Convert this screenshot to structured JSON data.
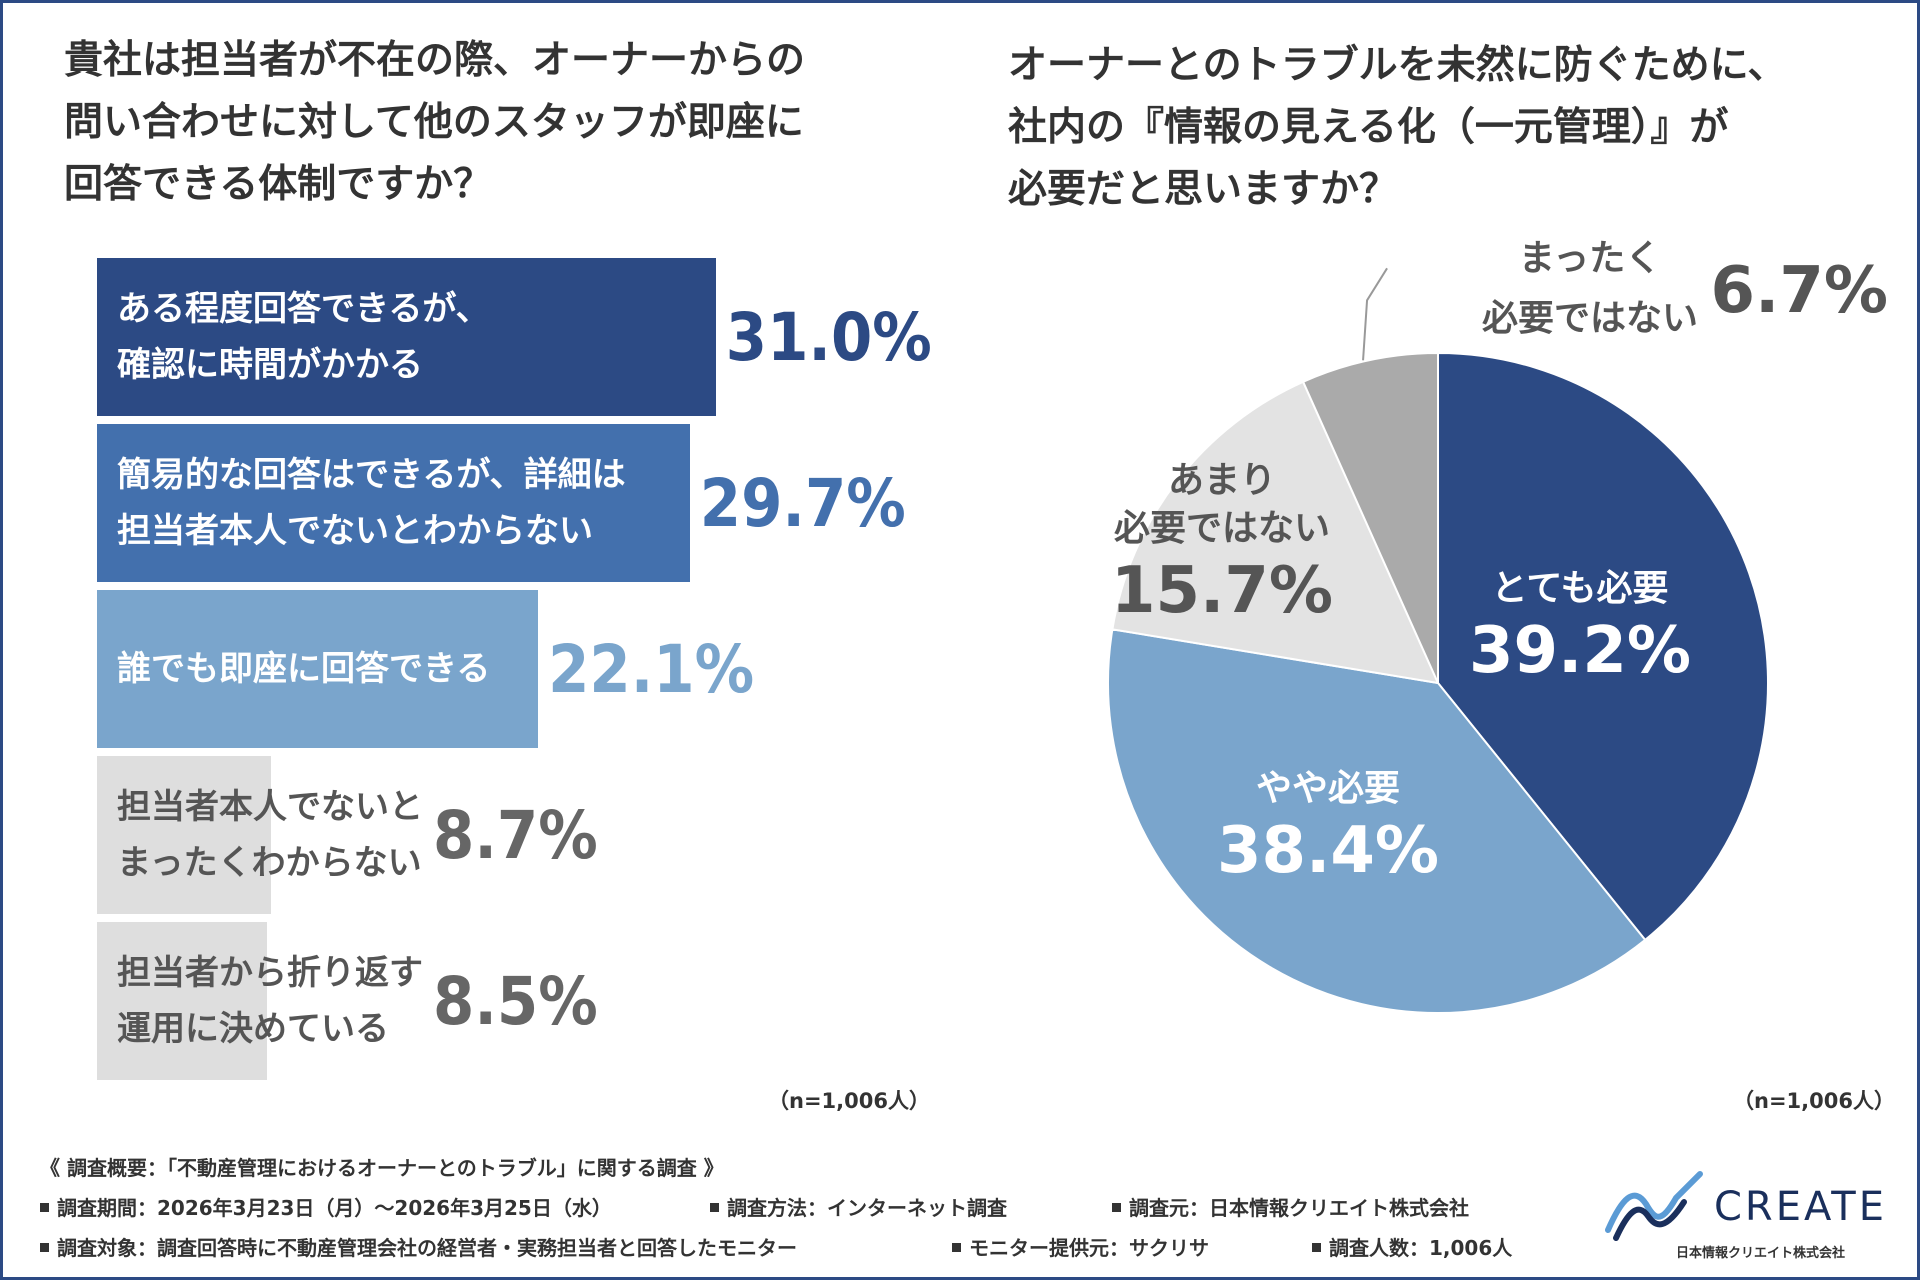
{
  "left_question": {
    "lines": [
      "貴社は担当者が不在の際、オーナーからの",
      "問い合わせに対して他のスタッフが即座に",
      "回答できる体制ですか？"
    ]
  },
  "right_question": {
    "lines": [
      "オーナーとのトラブルを未然に防ぐために、",
      "社内の『情報の見える化（一元管理）』が",
      "必要だと思いますか？"
    ]
  },
  "chart_data": [
    {
      "type": "bar",
      "orientation": "horizontal",
      "categories": [
        "ある程度回答できるが、確認に時間がかかる",
        "簡易的な回答はできるが、詳細は担当者本人でないとわからない",
        "誰でも即座に回答できる",
        "担当者本人でないとまったくわからない",
        "担当者から折り返す運用に決めている"
      ],
      "label_lines": [
        [
          "ある程度回答できるが、",
          "確認に時間がかかる"
        ],
        [
          "簡易的な回答はできるが、詳細は",
          "担当者本人でないとわからない"
        ],
        [
          "誰でも即座に回答できる"
        ],
        [
          "担当者本人でないと",
          "まったくわからない"
        ],
        [
          "担当者から折り返す",
          "運用に決めている"
        ]
      ],
      "values": [
        31.0,
        29.7,
        22.1,
        8.7,
        8.5
      ],
      "value_labels": [
        "31.0%",
        "29.7%",
        "22.1%",
        "8.7%",
        "8.5%"
      ],
      "colors": [
        "#2c4a84",
        "#4370ad",
        "#7aa5cc",
        "#dedede",
        "#dedede"
      ],
      "label_colors": [
        "#ffffff",
        "#ffffff",
        "#ffffff",
        "#555555",
        "#555555"
      ],
      "value_colors": [
        "#2c4a84",
        "#4370ad",
        "#7aa5cc",
        "#666666",
        "#666666"
      ],
      "n_note": "（n=1,006人）"
    },
    {
      "type": "pie",
      "slices": [
        {
          "lines": [
            "とても必要"
          ],
          "value": 39.2,
          "value_label": "39.2%",
          "color": "#2c4a84",
          "text_color": "#ffffff"
        },
        {
          "lines": [
            "やや必要"
          ],
          "value": 38.4,
          "value_label": "38.4%",
          "color": "#7aa5cc",
          "text_color": "#ffffff"
        },
        {
          "lines": [
            "あまり",
            "必要ではない"
          ],
          "value": 15.7,
          "value_label": "15.7%",
          "color": "#e3e3e3",
          "text_color": "#555555"
        },
        {
          "lines": [
            "まったく",
            "必要ではない"
          ],
          "value": 6.7,
          "value_label": "6.7%",
          "color": "#aaaaaa",
          "text_color": "#555555"
        }
      ],
      "n_note": "（n=1,006人）"
    }
  ],
  "footer": {
    "overview": "《 調査概要：「不動産管理におけるオーナーとのトラブル」に関する調査 》",
    "period": "調査期間：2026年3月23日（月）～2026年3月25日（水）",
    "method": "調査方法：インターネット調査",
    "source": "調査元：日本情報クリエイト株式会社",
    "target": "調査対象：調査回答時に不動産管理会社の経営者・実務担当者と回答したモニター",
    "provider": "モニター提供元：サクリサ",
    "count": "調査人数：1,006人"
  },
  "logo": {
    "word": "CREATE",
    "company": "日本情報クリエイト株式会社",
    "colors": [
      "#1a2f5c",
      "#5b9bd5"
    ]
  }
}
